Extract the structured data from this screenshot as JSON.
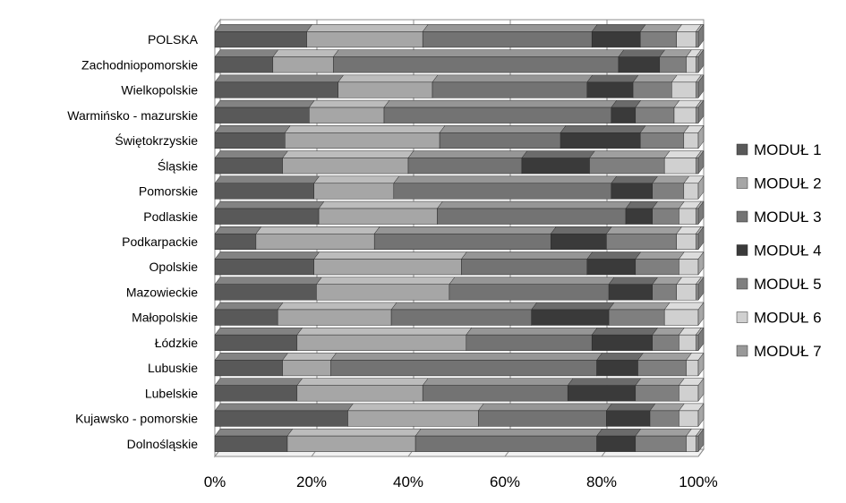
{
  "chart_data": {
    "type": "bar",
    "orientation": "horizontal",
    "stacked": "percent",
    "three_d": true,
    "categories": [
      "POLSKA",
      "Zachodniopomorskie",
      "Wielkopolskie",
      "Warmińsko - mazurskie",
      "Świętokrzyskie",
      "Śląskie",
      "Pomorskie",
      "Podlaskie",
      "Podkarpackie",
      "Opolskie",
      "Mazowieckie",
      "Małopolskie",
      "Łódzkie",
      "Lubuskie",
      "Lubelskie",
      "Kujawsko - pomorskie",
      "Dolnośląskie"
    ],
    "series": [
      {
        "name": "MODUŁ 1",
        "color": "#595959",
        "values": [
          19,
          12,
          25.5,
          19.5,
          14.5,
          14,
          20.5,
          21.5,
          8.5,
          20.5,
          21,
          13,
          17,
          14,
          17,
          27.5,
          15
        ]
      },
      {
        "name": "MODUŁ 2",
        "color": "#a6a6a6",
        "values": [
          24,
          12.5,
          19.5,
          15.5,
          32,
          26,
          16.5,
          24.5,
          24.5,
          30.5,
          27.5,
          23.5,
          35,
          10,
          26,
          27,
          26.5
        ]
      },
      {
        "name": "MODUŁ 3",
        "color": "#737373",
        "values": [
          35,
          59,
          32,
          47,
          25,
          23.5,
          45,
          39,
          36.5,
          26,
          33,
          29,
          26,
          55,
          30,
          26.5,
          37.5
        ]
      },
      {
        "name": "MODUŁ 4",
        "color": "#3a3a3a",
        "values": [
          10,
          8.5,
          9.5,
          5,
          16.5,
          14,
          8.5,
          5.5,
          11.5,
          10,
          9,
          16,
          12.5,
          8.5,
          14,
          9,
          8
        ]
      },
      {
        "name": "MODUŁ 5",
        "color": "#7f7f7f",
        "values": [
          7.5,
          5.5,
          8,
          8,
          9,
          15.5,
          6.5,
          5.5,
          14.5,
          9,
          5,
          11.5,
          5.5,
          10,
          9,
          6,
          10.5
        ]
      },
      {
        "name": "MODUŁ 6",
        "color": "#d0d0d0",
        "values": [
          4,
          2,
          5,
          4.5,
          3,
          6.5,
          3,
          3.5,
          4,
          4,
          4,
          7,
          3.5,
          2.5,
          4,
          4,
          2
        ]
      },
      {
        "name": "MODUŁ 7",
        "color": "#999999",
        "values": [
          0.5,
          0.5,
          0.5,
          0.5,
          0,
          0.5,
          0,
          0.5,
          0.5,
          0,
          0.5,
          0,
          0.5,
          0,
          0,
          0,
          0.5
        ]
      }
    ],
    "x_ticks": [
      "0%",
      "20%",
      "40%",
      "60%",
      "80%",
      "100%"
    ],
    "xlim": [
      0,
      100
    ],
    "grid": "vertical",
    "legend_position": "right"
  }
}
